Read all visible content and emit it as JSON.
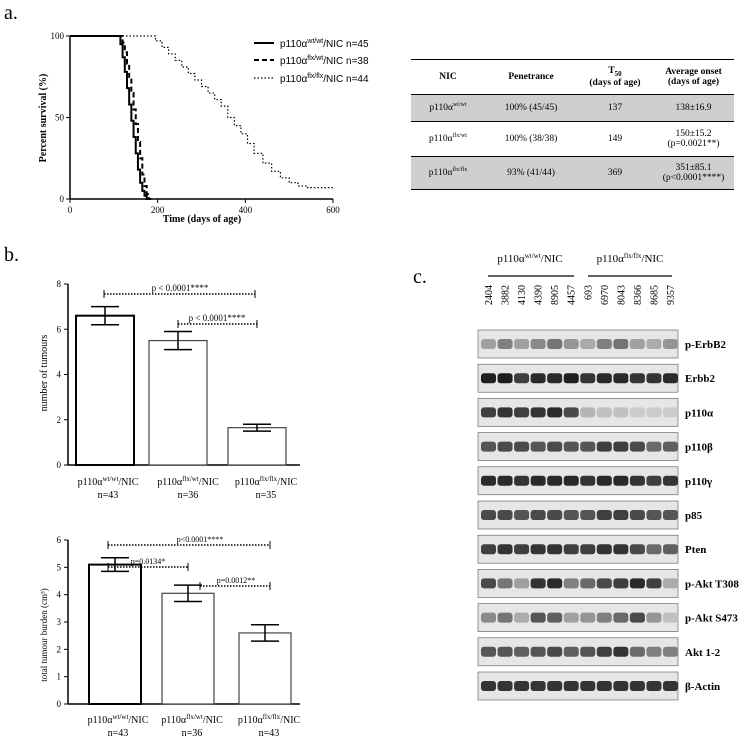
{
  "labels": {
    "a": "a.",
    "b": "b.",
    "c": "c."
  },
  "survival": {
    "ylabel": "Percent survival (%)",
    "xlabel": "Time (days of age)",
    "yticks": [
      "0",
      "50",
      "100"
    ],
    "xticks": [
      "0",
      "200",
      "400",
      "600"
    ],
    "legend": [
      {
        "base": "p110α",
        "sup": "wt/wt",
        "rest": "/NIC n=45"
      },
      {
        "base": "p110α",
        "sup": "flx/wt",
        "rest": "/NIC n=38"
      },
      {
        "base": "p110α",
        "sup": "flx/flx",
        "rest": "/NIC n=44"
      }
    ]
  },
  "table": {
    "headers": [
      "NIC",
      "Penetrance",
      "T50 (days of age)",
      "Average onset (days of age)"
    ],
    "header_t50_main": "T",
    "header_t50_sub": "50",
    "header_t50_unit": "(days of age)",
    "header_onset_main": "Average onset",
    "header_onset_unit": "(days of age)",
    "rows": [
      {
        "geno_base": "p110α",
        "geno_sup": "wt/wt",
        "penetrance": "100% (45/45)",
        "t50": "137",
        "onset": "138±16.9",
        "p": ""
      },
      {
        "geno_base": "p110α",
        "geno_sup": "flx/wt",
        "penetrance": "100% (38/38)",
        "t50": "149",
        "onset": "150±15.2",
        "p": "(p=0.0021**)"
      },
      {
        "geno_base": "p110α",
        "geno_sup": "flx/flx",
        "penetrance": "93% (41/44)",
        "t50": "369",
        "onset": "351±85.1",
        "p": "(p<0.0001****)"
      }
    ]
  },
  "tumours": {
    "ylabel": "number of tumours",
    "yticks": [
      "0",
      "2",
      "4",
      "6",
      "8"
    ],
    "sig": [
      "p < 0.0001****",
      "p < 0.0001****"
    ],
    "groups": [
      {
        "base": "p110α",
        "sup": "wt/wt",
        "rest": "/NIC",
        "n": "n=43"
      },
      {
        "base": "p110α",
        "sup": "flx/wt",
        "rest": "/NIC",
        "n": "n=36"
      },
      {
        "base": "p110α",
        "sup": "flx/flx",
        "rest": "/NIC",
        "n": "n=35"
      }
    ]
  },
  "burden": {
    "ylabel": "total tumour burden (cm³)",
    "yticks": [
      "0",
      "1",
      "2",
      "3",
      "4",
      "5",
      "6"
    ],
    "sig": [
      "p<0.0001****",
      "p=0.0134*",
      "p=0.0012**"
    ],
    "groups": [
      {
        "base": "p110α",
        "sup": "wt/wt",
        "rest": "/NIC",
        "n": "n=43"
      },
      {
        "base": "p110α",
        "sup": "flx/wt",
        "rest": "/NIC",
        "n": "n=36"
      },
      {
        "base": "p110α",
        "sup": "flx/flx",
        "rest": "/NIC",
        "n": "n=43"
      }
    ]
  },
  "blot": {
    "group1": {
      "base": "p110α",
      "sup": "wt/wt",
      "rest": "/NIC"
    },
    "group2": {
      "base": "p110α",
      "sup": "flx/flx",
      "rest": "/NIC"
    },
    "lanes": [
      "2404",
      "3882",
      "4130",
      "4390",
      "8905",
      "4457",
      "693",
      "6970",
      "8043",
      "8366",
      "8685",
      "9357"
    ],
    "proteins": [
      "p-ErbB2",
      "Erbb2",
      "p110α",
      "p110β",
      "p110γ",
      "p85",
      "Pten",
      "p-Akt T308",
      "p-Akt S473",
      "Akt 1-2",
      "β-Actin"
    ]
  },
  "chart_data": [
    {
      "type": "line",
      "title": "",
      "xlabel": "Time (days of age)",
      "ylabel": "Percent survival (%)",
      "xlim": [
        0,
        600
      ],
      "ylim": [
        0,
        100
      ],
      "series": [
        {
          "name": "p110α wt/wt/NIC n=45",
          "style": "solid",
          "x": [
            0,
            110,
            115,
            120,
            125,
            130,
            135,
            140,
            145,
            150,
            155,
            160,
            165,
            170,
            175,
            180
          ],
          "y": [
            100,
            100,
            95,
            87,
            78,
            68,
            58,
            48,
            38,
            28,
            18,
            10,
            5,
            2,
            0,
            0
          ]
        },
        {
          "name": "p110α flx/wt/NIC n=38",
          "style": "dashed",
          "x": [
            0,
            115,
            120,
            125,
            130,
            135,
            140,
            145,
            150,
            155,
            160,
            165,
            170,
            175,
            180,
            185
          ],
          "y": [
            100,
            100,
            96,
            90,
            83,
            74,
            65,
            55,
            46,
            35,
            25,
            15,
            8,
            3,
            0,
            0
          ]
        },
        {
          "name": "p110α flx/flx/NIC n=44",
          "style": "dotted",
          "x": [
            0,
            180,
            195,
            210,
            225,
            240,
            255,
            270,
            285,
            300,
            315,
            330,
            345,
            360,
            375,
            390,
            405,
            420,
            440,
            460,
            480,
            500,
            520,
            540,
            560,
            600
          ],
          "y": [
            100,
            100,
            97,
            93,
            89,
            85,
            81,
            77,
            73,
            69,
            65,
            61,
            57,
            50,
            45,
            40,
            34,
            28,
            22,
            17,
            13,
            10,
            8,
            7,
            7,
            7
          ]
        }
      ]
    },
    {
      "type": "table",
      "columns": [
        "NIC",
        "Penetrance",
        "T50 (days of age)",
        "Average onset (days of age)"
      ],
      "rows": [
        [
          "p110α wt/wt",
          "100% (45/45)",
          "137",
          "138±16.9"
        ],
        [
          "p110α flx/wt",
          "100% (38/38)",
          "149",
          "150±15.2 (p=0.0021**)"
        ],
        [
          "p110α flx/flx",
          "93% (41/44)",
          "369",
          "351±85.1 (p<0.0001****)"
        ]
      ]
    },
    {
      "type": "bar",
      "categories": [
        "p110α wt/wt/NIC n=43",
        "p110α flx/wt/NIC n=36",
        "p110α flx/flx/NIC n=35"
      ],
      "values": [
        6.6,
        5.5,
        1.65
      ],
      "errors": [
        0.4,
        0.4,
        0.15
      ],
      "ylabel": "number of tumours",
      "ylim": [
        0,
        8
      ]
    },
    {
      "type": "bar",
      "categories": [
        "p110α wt/wt/NIC n=43",
        "p110α flx/wt/NIC n=36",
        "p110α flx/flx/NIC n=43"
      ],
      "values": [
        5.1,
        4.05,
        2.6
      ],
      "errors": [
        0.25,
        0.3,
        0.3
      ],
      "ylabel": "total tumour burden (cm³)",
      "ylim": [
        0,
        6
      ]
    }
  ]
}
